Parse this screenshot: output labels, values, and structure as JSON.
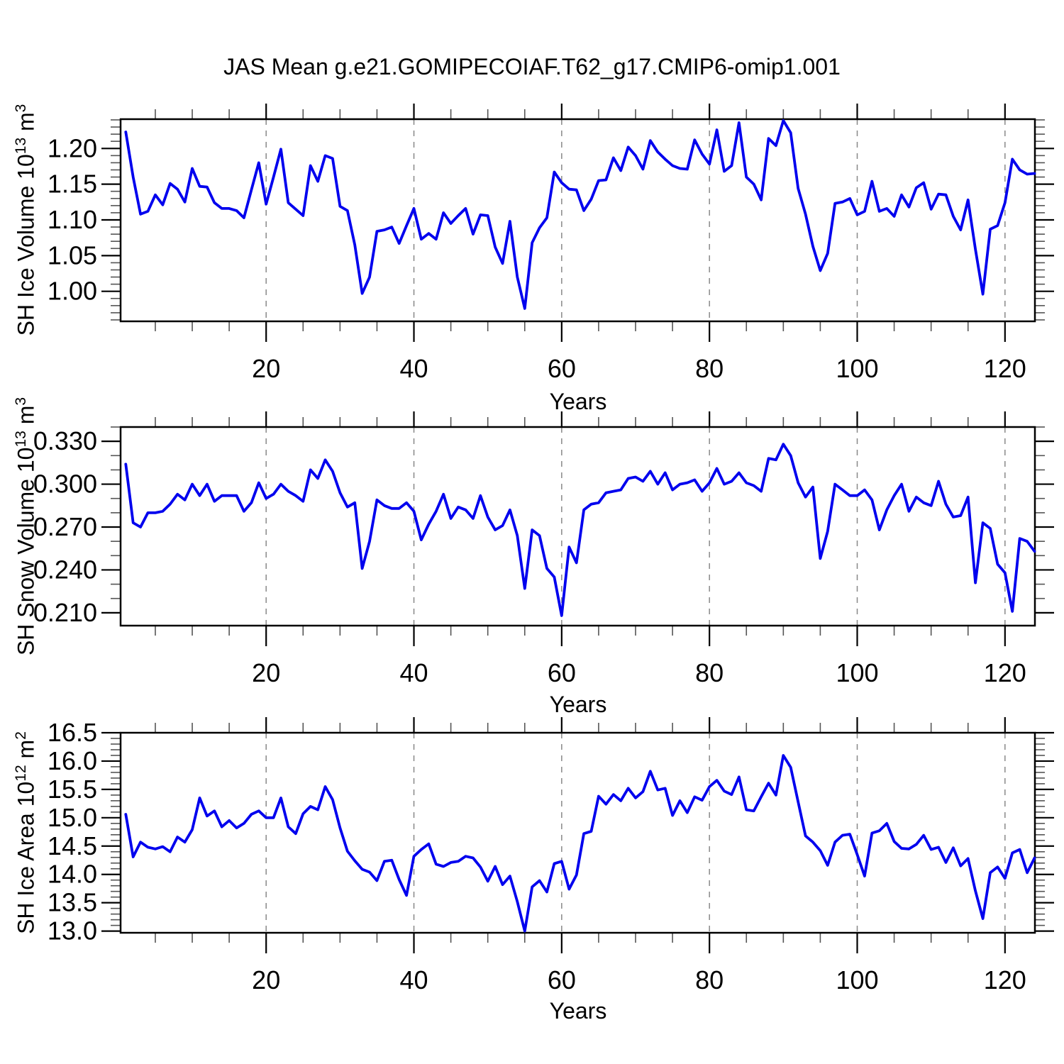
{
  "title": "JAS Mean g.e21.GOMIPECOIAF.T62_g17.CMIP6-omip1.001",
  "colors": {
    "line": "#0000ee",
    "grid": "#888888",
    "axis": "#000000",
    "minor_tick": "#555555"
  },
  "chart_data": [
    {
      "type": "line",
      "name": "sh-ice-volume",
      "ylabel_parts": [
        "SH Ice Volume 10",
        "13",
        " m",
        "3"
      ],
      "xlabel": "Years",
      "xlim": [
        0.3,
        124.05
      ],
      "x_start": 1,
      "xticks": [
        20,
        40,
        60,
        80,
        100,
        120
      ],
      "xminor_step": 5,
      "grid_at_xticks": true,
      "ylim": [
        0.958,
        1.241
      ],
      "yticks": [
        1.0,
        1.05,
        1.1,
        1.15,
        1.2
      ],
      "ytick_labels": [
        "1.00",
        "1.05",
        "1.10",
        "1.15",
        "1.20"
      ],
      "yminor_step": 0.01,
      "values": [
        1.223,
        1.16,
        1.108,
        1.112,
        1.135,
        1.121,
        1.151,
        1.143,
        1.125,
        1.172,
        1.147,
        1.146,
        1.124,
        1.116,
        1.116,
        1.113,
        1.103,
        1.142,
        1.18,
        1.122,
        1.16,
        1.199,
        1.124,
        1.115,
        1.106,
        1.176,
        1.154,
        1.19,
        1.186,
        1.119,
        1.113,
        1.065,
        0.997,
        1.02,
        1.084,
        1.086,
        1.09,
        1.067,
        1.092,
        1.116,
        1.073,
        1.081,
        1.073,
        1.11,
        1.095,
        1.106,
        1.116,
        1.08,
        1.107,
        1.106,
        1.062,
        1.039,
        1.098,
        1.02,
        0.976,
        1.068,
        1.089,
        1.103,
        1.167,
        1.152,
        1.143,
        1.142,
        1.113,
        1.129,
        1.155,
        1.156,
        1.187,
        1.169,
        1.202,
        1.19,
        1.171,
        1.211,
        1.195,
        1.185,
        1.176,
        1.172,
        1.171,
        1.212,
        1.192,
        1.178,
        1.226,
        1.168,
        1.176,
        1.236,
        1.16,
        1.15,
        1.128,
        1.214,
        1.204,
        1.239,
        1.222,
        1.144,
        1.108,
        1.063,
        1.029,
        1.053,
        1.123,
        1.125,
        1.13,
        1.107,
        1.112,
        1.154,
        1.112,
        1.116,
        1.105,
        1.135,
        1.118,
        1.145,
        1.152,
        1.115,
        1.136,
        1.135,
        1.105,
        1.086,
        1.128,
        1.059,
        0.996,
        1.087,
        1.092,
        1.124,
        1.185,
        1.17,
        1.164,
        1.165
      ]
    },
    {
      "type": "line",
      "name": "sh-snow-volume",
      "ylabel_parts": [
        "SH Snow Volume 10",
        "13",
        " m",
        "3"
      ],
      "xlabel": "Years",
      "xlim": [
        0.3,
        124.05
      ],
      "x_start": 1,
      "xticks": [
        20,
        40,
        60,
        80,
        100,
        120
      ],
      "xminor_step": 5,
      "grid_at_xticks": true,
      "ylim": [
        0.201,
        0.34
      ],
      "yticks": [
        0.21,
        0.24,
        0.27,
        0.3,
        0.33
      ],
      "ytick_labels": [
        "0.210",
        "0.240",
        "0.270",
        "0.300",
        "0.330"
      ],
      "yminor_step": 0.01,
      "values": [
        0.314,
        0.273,
        0.27,
        0.28,
        0.28,
        0.281,
        0.286,
        0.293,
        0.289,
        0.3,
        0.292,
        0.3,
        0.288,
        0.292,
        0.292,
        0.292,
        0.281,
        0.287,
        0.301,
        0.29,
        0.293,
        0.3,
        0.295,
        0.292,
        0.288,
        0.31,
        0.304,
        0.317,
        0.309,
        0.294,
        0.284,
        0.287,
        0.241,
        0.26,
        0.289,
        0.285,
        0.283,
        0.283,
        0.287,
        0.281,
        0.261,
        0.272,
        0.281,
        0.293,
        0.276,
        0.284,
        0.282,
        0.276,
        0.292,
        0.277,
        0.268,
        0.271,
        0.282,
        0.264,
        0.227,
        0.268,
        0.264,
        0.241,
        0.235,
        0.208,
        0.256,
        0.245,
        0.282,
        0.286,
        0.287,
        0.294,
        0.295,
        0.296,
        0.304,
        0.305,
        0.302,
        0.309,
        0.3,
        0.308,
        0.296,
        0.3,
        0.301,
        0.303,
        0.295,
        0.301,
        0.311,
        0.3,
        0.302,
        0.308,
        0.301,
        0.299,
        0.295,
        0.318,
        0.317,
        0.328,
        0.32,
        0.301,
        0.291,
        0.298,
        0.248,
        0.267,
        0.3,
        0.296,
        0.292,
        0.292,
        0.296,
        0.289,
        0.268,
        0.282,
        0.292,
        0.3,
        0.281,
        0.291,
        0.287,
        0.285,
        0.302,
        0.286,
        0.277,
        0.278,
        0.291,
        0.231,
        0.273,
        0.269,
        0.244,
        0.238,
        0.211,
        0.262,
        0.26,
        0.253
      ]
    },
    {
      "type": "line",
      "name": "sh-ice-area",
      "ylabel_parts": [
        "SH Ice Area 10",
        "12",
        " m",
        "2"
      ],
      "xlabel": "Years",
      "xlim": [
        0.3,
        124.05
      ],
      "x_start": 1,
      "xticks": [
        20,
        40,
        60,
        80,
        100,
        120
      ],
      "xminor_step": 5,
      "grid_at_xticks": true,
      "ylim": [
        12.97,
        16.5
      ],
      "yticks": [
        13.0,
        13.5,
        14.0,
        14.5,
        15.0,
        15.5,
        16.0,
        16.5
      ],
      "ytick_labels": [
        "13.0",
        "13.5",
        "14.0",
        "14.5",
        "15.0",
        "15.5",
        "16.0",
        "16.5"
      ],
      "yminor_step": 0.1,
      "values": [
        15.06,
        14.31,
        14.57,
        14.48,
        14.45,
        14.49,
        14.4,
        14.66,
        14.57,
        14.79,
        15.35,
        15.03,
        15.12,
        14.84,
        14.95,
        14.82,
        14.9,
        15.06,
        15.12,
        15.0,
        15.0,
        15.35,
        14.84,
        14.72,
        15.07,
        15.2,
        15.14,
        15.55,
        15.32,
        14.82,
        14.41,
        14.24,
        14.09,
        14.04,
        13.89,
        14.23,
        14.25,
        13.91,
        13.63,
        14.32,
        14.44,
        14.54,
        14.18,
        14.14,
        14.21,
        14.23,
        14.32,
        14.29,
        14.13,
        13.88,
        14.14,
        13.82,
        13.97,
        13.52,
        13.0,
        13.78,
        13.89,
        13.69,
        14.19,
        14.23,
        13.74,
        13.99,
        14.72,
        14.76,
        15.38,
        15.24,
        15.41,
        15.3,
        15.52,
        15.35,
        15.46,
        15.82,
        15.49,
        15.52,
        15.04,
        15.3,
        15.09,
        15.37,
        15.31,
        15.55,
        15.66,
        15.47,
        15.41,
        15.72,
        15.14,
        15.12,
        15.37,
        15.61,
        15.4,
        16.1,
        15.89,
        15.28,
        14.68,
        14.57,
        14.42,
        14.16,
        14.57,
        14.69,
        14.71,
        14.35,
        13.97,
        14.73,
        14.77,
        14.9,
        14.58,
        14.46,
        14.45,
        14.53,
        14.69,
        14.44,
        14.48,
        14.21,
        14.47,
        14.15,
        14.28,
        13.71,
        13.22,
        14.03,
        14.13,
        13.93,
        14.38,
        14.44,
        14.03,
        14.29
      ]
    }
  ]
}
